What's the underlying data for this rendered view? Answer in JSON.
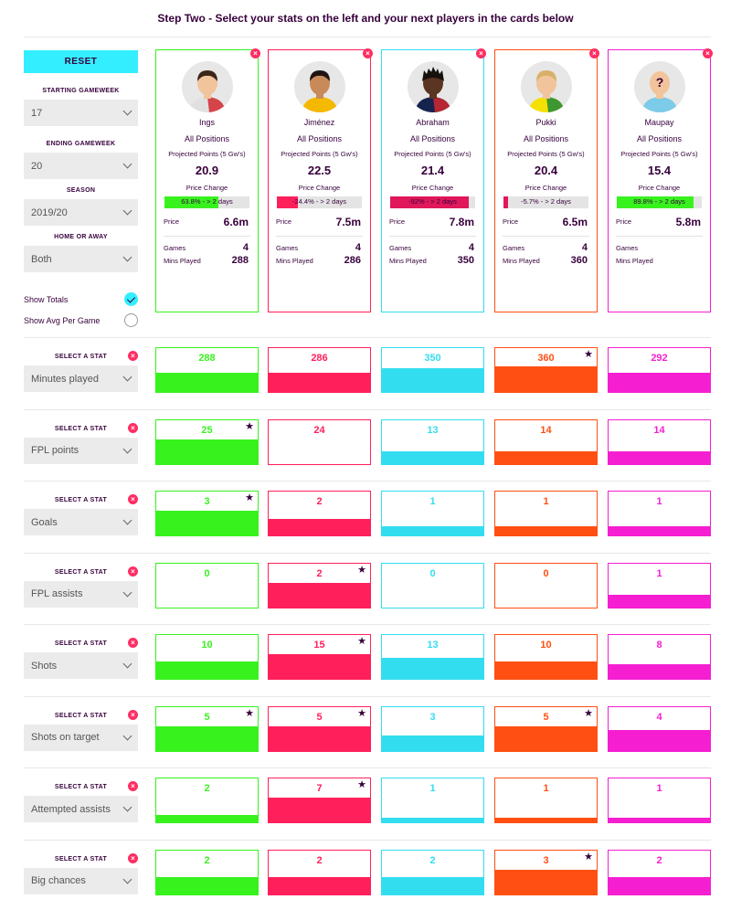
{
  "heading": "Step Two - Select your stats on the left and your next players in the cards below",
  "reset_label": "RESET",
  "filters": [
    {
      "label": "STARTING GAMEWEEK",
      "value": "17"
    },
    {
      "label": "ENDING GAMEWEEK",
      "value": "20"
    },
    {
      "label": "SEASON",
      "value": "2019/20"
    },
    {
      "label": "HOME OR AWAY",
      "value": "Both"
    }
  ],
  "options": {
    "show_totals": "Show Totals",
    "show_avg": "Show Avg Per Game",
    "selected": "show_totals"
  },
  "card_labels": {
    "projected": "Projected Points (5 Gw's)",
    "price_change": "Price Change",
    "price": "Price",
    "games": "Games",
    "mins_played": "Mins Played"
  },
  "stat_select_label": "SELECT A STAT",
  "remove_icon": "×",
  "star_icon": "★",
  "players": [
    {
      "name": "Ings",
      "position": "All Positions",
      "projected": "20.9",
      "price_change_text": "63.8% - > 2 days",
      "price_change_pct": 63.8,
      "price_change_color": "#38f21e",
      "price": "6.6m",
      "games": "4",
      "mins": "288",
      "color": "#38f21e",
      "avatar": "player-ings-avatar"
    },
    {
      "name": "Jiménez",
      "position": "All Positions",
      "projected": "22.5",
      "price_change_text": "-24.4% - > 2 days",
      "price_change_pct": 24.4,
      "price_change_color": "#ff1f5b",
      "price": "7.5m",
      "games": "4",
      "mins": "286",
      "color": "#ff1f5b",
      "avatar": "player-jimenez-avatar"
    },
    {
      "name": "Abraham",
      "position": "All Positions",
      "projected": "21.4",
      "price_change_text": "-92% - > 2 days",
      "price_change_pct": 92,
      "price_change_color": "#e0175a",
      "price": "7.8m",
      "games": "4",
      "mins": "350",
      "color": "#33ddf0",
      "avatar": "player-abraham-avatar"
    },
    {
      "name": "Pukki",
      "position": "All Positions",
      "projected": "20.4",
      "price_change_text": "-5.7% - > 2 days",
      "price_change_pct": 5.7,
      "price_change_color": "#e0175a",
      "price": "6.5m",
      "games": "4",
      "mins": "360",
      "color": "#ff4f12",
      "avatar": "player-pukki-avatar"
    },
    {
      "name": "Maupay",
      "position": "All Positions",
      "projected": "15.4",
      "price_change_text": "89.8% - > 2 days",
      "price_change_pct": 89.8,
      "price_change_color": "#38f21e",
      "price": "5.8m",
      "games": "",
      "mins": "",
      "color": "#f51ed1",
      "avatar": "player-maupay-avatar"
    }
  ],
  "stats": [
    {
      "name": "Minutes played",
      "values": [
        "288",
        "286",
        "350",
        "360",
        "292"
      ],
      "fills": [
        0.44,
        0.44,
        0.55,
        0.58,
        0.44
      ],
      "stars": [
        false,
        false,
        false,
        true,
        false
      ]
    },
    {
      "name": "FPL points",
      "values": [
        "25",
        "24",
        "13",
        "14",
        "14"
      ],
      "fills": [
        0.56,
        0.0,
        0.28,
        0.28,
        0.28
      ],
      "stars": [
        true,
        false,
        false,
        false,
        false
      ]
    },
    {
      "name": "Goals",
      "values": [
        "3",
        "2",
        "1",
        "1",
        "1"
      ],
      "fills": [
        0.56,
        0.38,
        0.2,
        0.2,
        0.2
      ],
      "stars": [
        true,
        false,
        false,
        false,
        false
      ]
    },
    {
      "name": "FPL assists",
      "values": [
        "0",
        "2",
        "0",
        "0",
        "1"
      ],
      "fills": [
        0,
        0.56,
        0,
        0,
        0.28
      ],
      "stars": [
        false,
        true,
        false,
        false,
        false
      ]
    },
    {
      "name": "Shots",
      "values": [
        "10",
        "15",
        "13",
        "10",
        "8"
      ],
      "fills": [
        0.4,
        0.56,
        0.48,
        0.4,
        0.34
      ],
      "stars": [
        false,
        true,
        false,
        false,
        false
      ]
    },
    {
      "name": "Shots on target",
      "values": [
        "5",
        "5",
        "3",
        "5",
        "4"
      ],
      "fills": [
        0.56,
        0.56,
        0.34,
        0.56,
        0.46
      ],
      "stars": [
        true,
        true,
        false,
        true,
        false
      ]
    },
    {
      "name": "Attempted assists",
      "values": [
        "2",
        "7",
        "1",
        "1",
        "1"
      ],
      "fills": [
        0.16,
        0.56,
        0.1,
        0.1,
        0.1
      ],
      "stars": [
        false,
        true,
        false,
        false,
        false
      ]
    },
    {
      "name": "Big chances",
      "values": [
        "2",
        "2",
        "2",
        "3",
        "2"
      ],
      "fills": [
        0.38,
        0.38,
        0.38,
        0.56,
        0.38
      ],
      "stars": [
        false,
        false,
        false,
        true,
        false
      ]
    }
  ]
}
